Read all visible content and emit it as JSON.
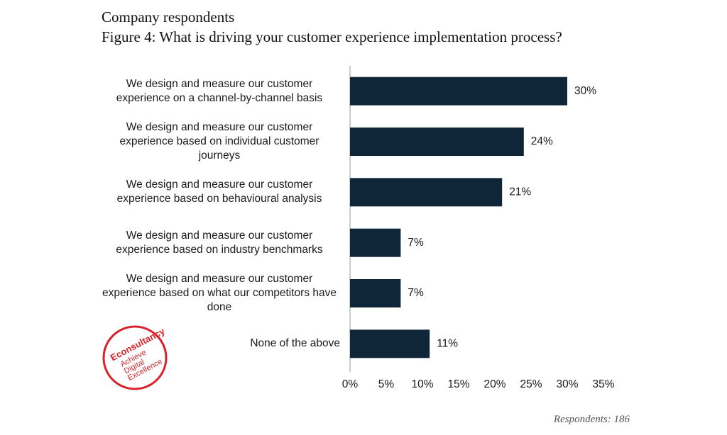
{
  "chart_data": {
    "type": "barh",
    "subtitle": "Company respondents",
    "title": "Figure 4: What is driving your customer experience implementation process?",
    "categories": [
      "We design and measure our customer experience on a channel-by-channel basis",
      "We design and measure our customer experience based on individual customer journeys",
      "We design and measure our customer experience based on behavioural analysis",
      "We design and measure our customer experience based on industry benchmarks",
      "We design and measure our customer experience based on what our competitors have done",
      "None of the above"
    ],
    "values": [
      30,
      24,
      21,
      7,
      7,
      11
    ],
    "value_labels": [
      "30%",
      "24%",
      "21%",
      "7%",
      "7%",
      "11%"
    ],
    "color": "#0f2638",
    "xlim": [
      0,
      35
    ],
    "xticks": [
      {
        "value": 0,
        "label": "0%"
      },
      {
        "value": 5,
        "label": "5%"
      },
      {
        "value": 10,
        "label": "10%"
      },
      {
        "value": 15,
        "label": "15%"
      },
      {
        "value": 20,
        "label": "20%"
      },
      {
        "value": 25,
        "label": "25%"
      },
      {
        "value": 30,
        "label": "30%"
      },
      {
        "value": 35,
        "label": "35%"
      }
    ],
    "grid": false,
    "note": "Respondents: 186",
    "logo": {
      "name": "Econsultancy",
      "tagline": [
        "Achieve",
        "Digital",
        "Excellence"
      ]
    }
  }
}
